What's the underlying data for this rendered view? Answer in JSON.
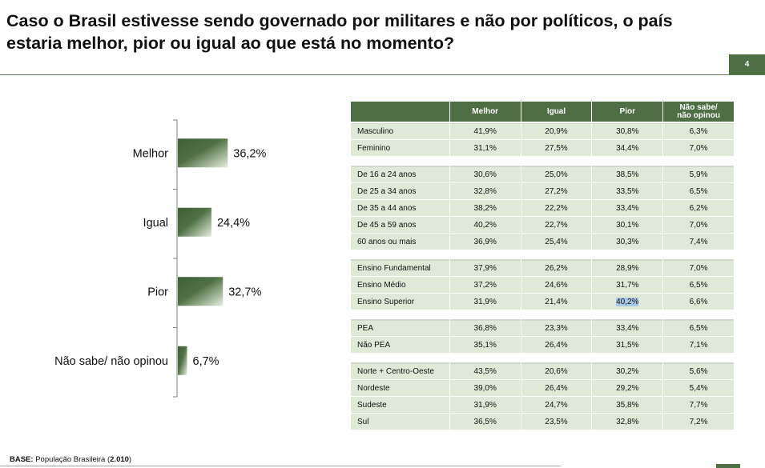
{
  "header": {
    "title": "Caso o Brasil estivesse sendo governado por militares e não por políticos, o país estaria melhor, pior ou igual ao que está no momento?",
    "page_number": "4"
  },
  "chart_data": {
    "type": "bar",
    "orientation": "horizontal",
    "categories": [
      "Melhor",
      "Igual",
      "Pior",
      "Não sabe/ não opinou"
    ],
    "values": [
      36.2,
      24.4,
      32.7,
      6.7
    ],
    "value_labels": [
      "36,2%",
      "24,4%",
      "32,7%",
      "6,7%"
    ],
    "unit": "%",
    "xlim": [
      0,
      100
    ],
    "grid": false,
    "legend": "none",
    "colors": {
      "bar_dark": "#3f5f36",
      "bar_light": "#e6eee0"
    }
  },
  "table": {
    "columns": [
      "",
      "Melhor",
      "Igual",
      "Pior",
      "Não sabe/\nnão opinou"
    ],
    "groups": [
      [
        {
          "label": "Masculino",
          "values": [
            "41,9%",
            "20,9%",
            "30,8%",
            "6,3%"
          ]
        },
        {
          "label": "Feminino",
          "values": [
            "31,1%",
            "27,5%",
            "34,4%",
            "7,0%"
          ]
        }
      ],
      [
        {
          "label": "De 16 a 24 anos",
          "values": [
            "30,6%",
            "25,0%",
            "38,5%",
            "5,9%"
          ]
        },
        {
          "label": "De 25 a 34 anos",
          "values": [
            "32,8%",
            "27,2%",
            "33,5%",
            "6,5%"
          ]
        },
        {
          "label": "De 35 a 44 anos",
          "values": [
            "38,2%",
            "22,2%",
            "33,4%",
            "6,2%"
          ]
        },
        {
          "label": "De 45 a 59 anos",
          "values": [
            "40,2%",
            "22,7%",
            "30,1%",
            "7,0%"
          ]
        },
        {
          "label": "60 anos ou mais",
          "values": [
            "36,9%",
            "25,4%",
            "30,3%",
            "7,4%"
          ]
        }
      ],
      [
        {
          "label": "Ensino Fundamental",
          "values": [
            "37,9%",
            "26,2%",
            "28,9%",
            "7,0%"
          ]
        },
        {
          "label": "Ensino Médio",
          "values": [
            "37,2%",
            "24,6%",
            "31,7%",
            "6,5%"
          ]
        },
        {
          "label": "Ensino Superior",
          "values": [
            "31,9%",
            "21,4%",
            "40,2%",
            "6,6%"
          ],
          "highlight_col": 2
        }
      ],
      [
        {
          "label": "PEA",
          "values": [
            "36,8%",
            "23,3%",
            "33,4%",
            "6,5%"
          ]
        },
        {
          "label": "Não PEA",
          "values": [
            "35,1%",
            "26,4%",
            "31,5%",
            "7,1%"
          ]
        }
      ],
      [
        {
          "label": "Norte + Centro-Oeste",
          "values": [
            "43,5%",
            "20,6%",
            "30,2%",
            "5,6%"
          ]
        },
        {
          "label": "Nordeste",
          "values": [
            "39,0%",
            "26,4%",
            "29,2%",
            "5,4%"
          ]
        },
        {
          "label": "Sudeste",
          "values": [
            "31,9%",
            "24,7%",
            "35,8%",
            "7,7%"
          ]
        },
        {
          "label": "Sul",
          "values": [
            "36,5%",
            "23,5%",
            "32,8%",
            "7,2%"
          ]
        }
      ]
    ]
  },
  "footer": {
    "base_label": "BASE:",
    "base_text_pre": " População Brasileira (",
    "base_count": "2.010",
    "base_text_post": ")"
  }
}
